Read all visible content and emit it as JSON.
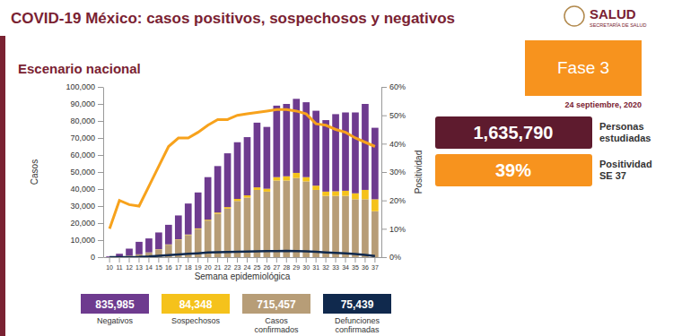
{
  "chart_data": {
    "type": "bar",
    "title": "COVID-19 México: casos positivos, sospechosos y negativos",
    "subtitle": "Escenario nacional",
    "x_label": "Semana epidemiológica",
    "y_label": "Casos",
    "stacked": true,
    "grid": false,
    "categories": [
      "10",
      "11",
      "12",
      "13",
      "14",
      "15",
      "16",
      "17",
      "18",
      "19",
      "20",
      "21",
      "22",
      "23",
      "24",
      "25",
      "26",
      "27",
      "28",
      "29",
      "30",
      "31",
      "32",
      "33",
      "34",
      "35",
      "36",
      "37"
    ],
    "ylim": [
      0,
      100000
    ],
    "yticks": [
      0,
      {
        "value": 10000,
        "label": "10,000"
      },
      {
        "value": 20000,
        "label": "20,000"
      },
      {
        "value": 30000,
        "label": "30,000"
      },
      {
        "value": 40000,
        "label": "40,000"
      },
      {
        "value": 50000,
        "label": "50,000"
      },
      {
        "value": 60000,
        "label": "60,000"
      },
      {
        "value": 70000,
        "label": "70,000"
      },
      {
        "value": 80000,
        "label": "80,000"
      },
      {
        "value": 90000,
        "label": "90,000"
      },
      {
        "value": 100000,
        "label": "100,000"
      }
    ],
    "y2lim": [
      0,
      60
    ],
    "y2ticks": [
      {
        "value": 0,
        "label": "0%"
      },
      {
        "value": 10,
        "label": "10%"
      },
      {
        "value": 20,
        "label": "20%"
      },
      {
        "value": 30,
        "label": "30%"
      },
      {
        "value": 40,
        "label": "40%"
      },
      {
        "value": 50,
        "label": "50%"
      },
      {
        "value": 60,
        "label": "60%"
      }
    ],
    "series": [
      {
        "name": "Negativos",
        "type": "bar",
        "color": "#6e3b8f",
        "total": {
          "value": 835985,
          "label": "835,985"
        },
        "values": [
          430,
          1570,
          4050,
          7320,
          8200,
          9850,
          11500,
          14050,
          18200,
          21100,
          25000,
          27300,
          31600,
          33300,
          34200,
          38000,
          36300,
          42000,
          42500,
          43500,
          44000,
          44000,
          42000,
          45300,
          46000,
          47500,
          50500,
          42000
        ]
      },
      {
        "name": "Sospechosos",
        "type": "bar",
        "color": "#f5c21b",
        "total": {
          "value": 84348,
          "label": "84,348"
        },
        "values": [
          20,
          30,
          50,
          80,
          100,
          150,
          200,
          250,
          300,
          400,
          500,
          700,
          900,
          1200,
          1300,
          1500,
          1700,
          2000,
          2500,
          3000,
          2500,
          2500,
          2500,
          2700,
          3000,
          3500,
          5500,
          7000
        ]
      },
      {
        "name": "Casos confirmados",
        "type": "bar",
        "color": "#b79d77",
        "total": {
          "value": 715457,
          "label": "715,457"
        },
        "values": [
          50,
          400,
          900,
          1600,
          2700,
          4500,
          7300,
          10200,
          13000,
          16500,
          21500,
          25500,
          28500,
          33000,
          35000,
          39500,
          38500,
          45000,
          45000,
          46500,
          44500,
          39500,
          36000,
          36000,
          36000,
          34000,
          34000,
          27000
        ]
      },
      {
        "name": "Defunciones confirmadas",
        "type": "line",
        "color": "#10294d",
        "total": {
          "value": 75439,
          "label": "75,439"
        },
        "values": [
          0,
          10,
          50,
          150,
          400,
          800,
          1200,
          1600,
          2000,
          2300,
          2700,
          2900,
          3000,
          3100,
          3300,
          3400,
          3500,
          3600,
          3700,
          3600,
          3400,
          3100,
          2800,
          2500,
          2200,
          1800,
          1300,
          700
        ]
      },
      {
        "name": "Positividad",
        "type": "line",
        "axis": "y2",
        "color": "#f7a21c",
        "values": [
          10,
          20,
          18.5,
          18,
          25,
          32,
          39,
          42,
          42,
          44,
          46.5,
          48.5,
          48.5,
          50,
          50.5,
          51,
          51.5,
          52,
          52,
          51.5,
          50.5,
          47,
          46.5,
          45,
          44,
          42,
          40.5,
          39
        ]
      }
    ]
  },
  "logo": {
    "text": "SALUD",
    "subtext": "SECRETARÍA DE SALUD"
  },
  "panel": {
    "phase": "Fase 3",
    "date": "24 septiembre, 2020",
    "studied": {
      "value": 1635790,
      "label": "1,635,790",
      "text": "Personas estudiadas"
    },
    "positivity": {
      "value": 39,
      "label": "39%",
      "text": "Positividad SE 37"
    }
  }
}
